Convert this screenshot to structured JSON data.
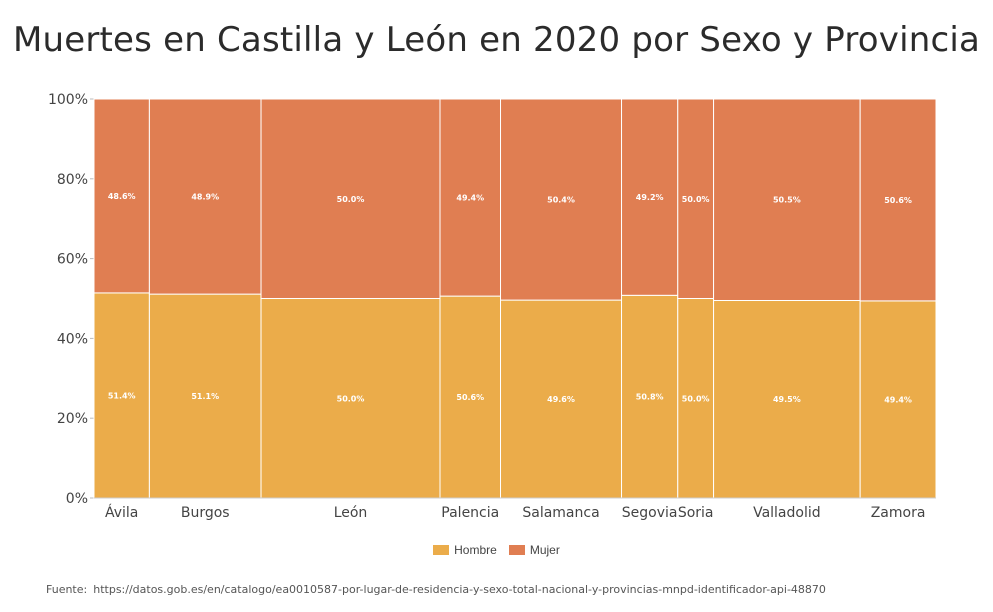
{
  "title": "Muertes en Castilla y León en 2020 por Sexo y Provincia",
  "legend": {
    "hombre": "Hombre",
    "mujer": "Mujer"
  },
  "colors": {
    "hombre": "#ebac4a",
    "mujer": "#e07e52"
  },
  "source": {
    "label": "Fuente:",
    "url": "https://datos.gob.es/en/catalogo/ea0010587-por-lugar-de-residencia-y-sexo-total-nacional-y-provincias-mnpd-identificador-api-48870"
  },
  "chart_data": {
    "type": "bar",
    "subtype": "marimekko-100-stacked",
    "categories": [
      "Ávila",
      "Burgos",
      "León",
      "Palencia",
      "Salamanca",
      "Segovia",
      "Soria",
      "Valladolid",
      "Zamora"
    ],
    "width_share_estimated": [
      6.5,
      13.1,
      21.0,
      7.1,
      14.2,
      6.6,
      4.2,
      17.2,
      8.9
    ],
    "series": [
      {
        "name": "Hombre",
        "values": [
          51.4,
          51.1,
          50.0,
          50.6,
          49.6,
          50.8,
          50.0,
          49.5,
          49.4
        ],
        "labels": [
          "51.4%",
          "51.1%",
          "50.0%",
          "50.6%",
          "49.6%",
          "50.8%",
          "50.0%",
          "49.5%",
          "49.4%"
        ]
      },
      {
        "name": "Mujer",
        "values": [
          48.6,
          48.9,
          50.0,
          49.4,
          50.4,
          49.2,
          50.0,
          50.5,
          50.6
        ],
        "labels": [
          "48.6%",
          "48.9%",
          "50.0%",
          "49.4%",
          "50.4%",
          "49.2%",
          "50.0%",
          "50.5%",
          "50.6%"
        ]
      }
    ],
    "ylim": [
      0,
      100
    ],
    "yticks": [
      "0%",
      "20%",
      "40%",
      "60%",
      "80%",
      "100%"
    ],
    "legend_position": "bottom-center"
  }
}
